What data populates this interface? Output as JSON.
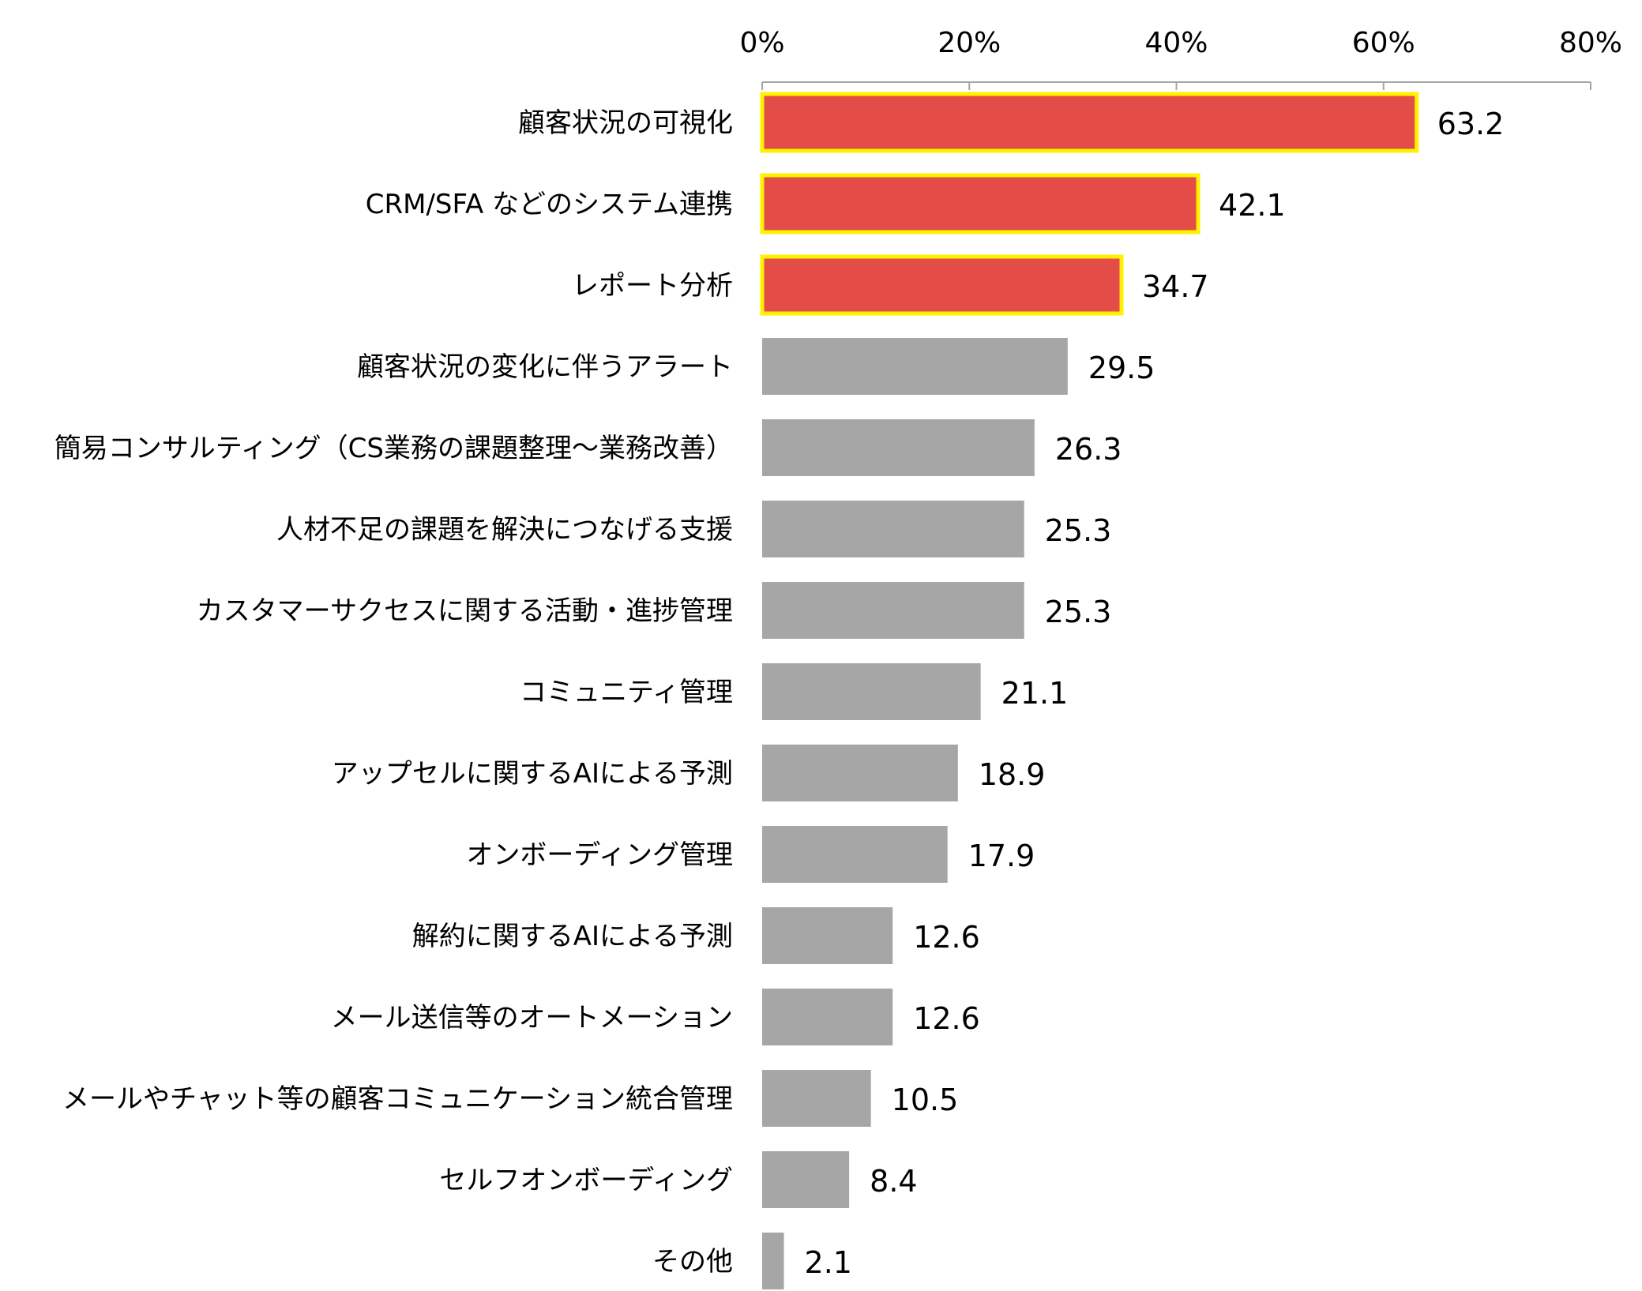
{
  "chart_data": {
    "type": "bar",
    "orientation": "horizontal",
    "xlim": [
      0,
      80
    ],
    "tick_values": [
      0,
      20,
      40,
      60,
      80
    ],
    "tick_labels": [
      "0%",
      "20%",
      "40%",
      "60%",
      "80%"
    ],
    "categories": [
      "顧客状況の可視化",
      "CRM/SFA などのシステム連携",
      "レポート分析",
      "顧客状況の変化に伴うアラート",
      "簡易コンサルティング（CS業務の課題整理～業務改善）",
      "人材不足の課題を解決につなげる支援",
      "カスタマーサクセスに関する活動・進捗管理",
      "コミュニティ管理",
      "アップセルに関するAIによる予測",
      "オンボーディング管理",
      "解約に関するAIによる予測",
      "メール送信等のオートメーション",
      "メールやチャット等の顧客コミュニケーション統合管理",
      "セルフオンボーディング",
      "その他"
    ],
    "values": [
      63.2,
      42.1,
      34.7,
      29.5,
      26.3,
      25.3,
      25.3,
      21.1,
      18.9,
      17.9,
      12.6,
      12.6,
      10.5,
      8.4,
      2.1
    ],
    "value_labels": [
      "63.2",
      "42.1",
      "34.7",
      "29.5",
      "26.3",
      "25.3",
      "25.3",
      "21.1",
      "18.9",
      "17.9",
      "12.6",
      "12.6",
      "10.5",
      "8.4",
      "2.1"
    ],
    "highlighted": [
      true,
      true,
      true,
      false,
      false,
      false,
      false,
      false,
      false,
      false,
      false,
      false,
      false,
      false,
      false
    ],
    "colors": {
      "highlight_fill": "#E34C47",
      "highlight_border": "#FFF200",
      "default_fill": "#A6A6A6",
      "axis": "#A6A6A6"
    },
    "grid": false,
    "legend": "none"
  }
}
